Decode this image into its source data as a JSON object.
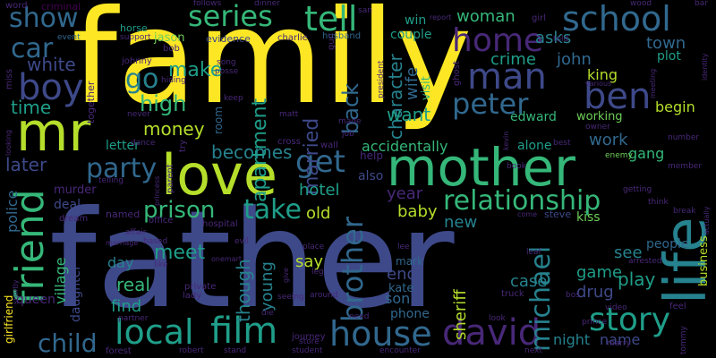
{
  "palette": {
    "yellow": "#fde725",
    "lime": "#b5de2b",
    "green": "#6ece58",
    "mint": "#35b779",
    "teal": "#1f9e89",
    "tealblue": "#26828e",
    "blue": "#31688e",
    "indigo": "#3e4989",
    "purple": "#482878",
    "violet": "#440154"
  },
  "words": [
    {
      "text": "father",
      "color": "indigo"
    },
    {
      "text": "family",
      "color": "yellow"
    },
    {
      "text": "mother",
      "color": "mint"
    },
    {
      "text": "mr",
      "color": "lime"
    },
    {
      "text": "love",
      "color": "lime"
    },
    {
      "text": "life",
      "color": "tealblue"
    },
    {
      "text": "school",
      "color": "blue"
    },
    {
      "text": "series",
      "color": "mint"
    },
    {
      "text": "tell",
      "color": "mint"
    },
    {
      "text": "home",
      "color": "purple"
    },
    {
      "text": "man",
      "color": "indigo"
    },
    {
      "text": "boy",
      "color": "indigo"
    },
    {
      "text": "friend",
      "color": "mint"
    },
    {
      "text": "show",
      "color": "blue"
    },
    {
      "text": "car",
      "color": "blue"
    },
    {
      "text": "local",
      "color": "teal"
    },
    {
      "text": "film",
      "color": "teal"
    },
    {
      "text": "house",
      "color": "blue"
    },
    {
      "text": "david",
      "color": "purple"
    },
    {
      "text": "story",
      "color": "teal"
    },
    {
      "text": "relationship",
      "color": "mint"
    },
    {
      "text": "party",
      "color": "blue"
    },
    {
      "text": "get",
      "color": "blue"
    },
    {
      "text": "peter",
      "color": "blue"
    },
    {
      "text": "ben",
      "color": "indigo"
    },
    {
      "text": "child",
      "color": "blue"
    },
    {
      "text": "michael",
      "color": "tealblue"
    },
    {
      "text": "brother",
      "color": "blue"
    },
    {
      "text": "take",
      "color": "teal"
    },
    {
      "text": "prison",
      "color": "mint"
    },
    {
      "text": "becomes",
      "color": "tealblue"
    },
    {
      "text": "go",
      "color": "tealblue"
    },
    {
      "text": "high",
      "color": "mint"
    },
    {
      "text": "money",
      "color": "lime"
    },
    {
      "text": "make",
      "color": "teal"
    },
    {
      "text": "white",
      "color": "indigo"
    },
    {
      "text": "time",
      "color": "teal"
    },
    {
      "text": "later",
      "color": "indigo"
    },
    {
      "text": "apartment",
      "color": "teal"
    },
    {
      "text": "married",
      "color": "indigo"
    },
    {
      "text": "back",
      "color": "blue"
    },
    {
      "text": "character",
      "color": "tealblue"
    },
    {
      "text": "wife",
      "color": "blue"
    },
    {
      "text": "want",
      "color": "teal"
    },
    {
      "text": "crime",
      "color": "teal"
    },
    {
      "text": "woman",
      "color": "mint"
    },
    {
      "text": "asks",
      "color": "tealblue"
    },
    {
      "text": "john",
      "color": "blue"
    },
    {
      "text": "king",
      "color": "lime"
    },
    {
      "text": "town",
      "color": "blue"
    },
    {
      "text": "plot",
      "color": "teal"
    },
    {
      "text": "begin",
      "color": "lime"
    },
    {
      "text": "working",
      "color": "green"
    },
    {
      "text": "work",
      "color": "blue"
    },
    {
      "text": "gang",
      "color": "mint"
    },
    {
      "text": "edward",
      "color": "mint"
    },
    {
      "text": "alone",
      "color": "teal"
    },
    {
      "text": "accidentally",
      "color": "mint"
    },
    {
      "text": "hotel",
      "color": "teal"
    },
    {
      "text": "year",
      "color": "purple"
    },
    {
      "text": "baby",
      "color": "lime"
    },
    {
      "text": "new",
      "color": "tealblue"
    },
    {
      "text": "old",
      "color": "lime"
    },
    {
      "text": "meet",
      "color": "teal"
    },
    {
      "text": "day",
      "color": "tealblue"
    },
    {
      "text": "real",
      "color": "mint"
    },
    {
      "text": "find",
      "color": "teal"
    },
    {
      "text": "say",
      "color": "lime"
    },
    {
      "text": "young",
      "color": "tealblue"
    },
    {
      "text": "though",
      "color": "tealblue"
    },
    {
      "text": "end",
      "color": "indigo"
    },
    {
      "text": "son",
      "color": "blue"
    },
    {
      "text": "case",
      "color": "tealblue"
    },
    {
      "text": "sheriff",
      "color": "lime"
    },
    {
      "text": "drug",
      "color": "indigo"
    },
    {
      "text": "game",
      "color": "teal"
    },
    {
      "text": "play",
      "color": "teal"
    },
    {
      "text": "see",
      "color": "tealblue"
    },
    {
      "text": "people",
      "color": "blue"
    },
    {
      "text": "business",
      "color": "lime"
    },
    {
      "text": "night",
      "color": "tealblue"
    },
    {
      "text": "name",
      "color": "indigo"
    },
    {
      "text": "police",
      "color": "blue"
    },
    {
      "text": "village",
      "color": "mint"
    },
    {
      "text": "daughter",
      "color": "indigo"
    },
    {
      "text": "girlfriend",
      "color": "yellow"
    },
    {
      "text": "queen",
      "color": "purple"
    },
    {
      "text": "murder",
      "color": "purple"
    },
    {
      "text": "deal",
      "color": "indigo"
    },
    {
      "text": "letter",
      "color": "teal"
    },
    {
      "text": "phone",
      "color": "blue"
    },
    {
      "text": "kate",
      "color": "blue"
    },
    {
      "text": "mark",
      "color": "blue"
    },
    {
      "text": "kiss",
      "color": "green"
    },
    {
      "text": "steve",
      "color": "indigo"
    },
    {
      "text": "together",
      "color": "purple"
    },
    {
      "text": "evidence",
      "color": "indigo"
    },
    {
      "text": "jason",
      "color": "green"
    },
    {
      "text": "criminal",
      "color": "violet"
    },
    {
      "text": "word",
      "color": "purple"
    },
    {
      "text": "win",
      "color": "teal"
    },
    {
      "text": "couple",
      "color": "teal"
    },
    {
      "text": "horse",
      "color": "teal"
    },
    {
      "text": "visit",
      "color": "mint"
    },
    {
      "text": "husband",
      "color": "blue"
    },
    {
      "text": "charlie",
      "color": "purple"
    },
    {
      "text": "event",
      "color": "blue"
    },
    {
      "text": "support",
      "color": "purple"
    },
    {
      "text": "bob",
      "color": "purple"
    },
    {
      "text": "johnny",
      "color": "purple"
    },
    {
      "text": "miss",
      "color": "purple"
    },
    {
      "text": "gun",
      "color": "purple"
    },
    {
      "text": "room",
      "color": "blue"
    },
    {
      "text": "ghost",
      "color": "purple"
    },
    {
      "text": "president",
      "color": "purple"
    },
    {
      "text": "also",
      "color": "indigo"
    },
    {
      "text": "help",
      "color": "purple"
    },
    {
      "text": "wall",
      "color": "purple"
    },
    {
      "text": "cross",
      "color": "purple"
    },
    {
      "text": "hospital",
      "color": "purple"
    },
    {
      "text": "office",
      "color": "purple"
    },
    {
      "text": "dream",
      "color": "purple"
    },
    {
      "text": "named",
      "color": "purple"
    },
    {
      "text": "parent",
      "color": "purple"
    },
    {
      "text": "lady",
      "color": "purple"
    },
    {
      "text": "private",
      "color": "purple"
    },
    {
      "text": "journey",
      "color": "purple"
    },
    {
      "text": "forest",
      "color": "purple"
    },
    {
      "text": "robert",
      "color": "purple"
    },
    {
      "text": "stand",
      "color": "purple"
    },
    {
      "text": "student",
      "color": "purple"
    },
    {
      "text": "encounter",
      "color": "purple"
    },
    {
      "text": "next",
      "color": "purple"
    },
    {
      "text": "marry",
      "color": "purple"
    },
    {
      "text": "tommy",
      "color": "purple"
    },
    {
      "text": "feel",
      "color": "purple"
    },
    {
      "text": "prince",
      "color": "purple"
    },
    {
      "text": "video",
      "color": "purple"
    },
    {
      "text": "look",
      "color": "purple"
    },
    {
      "text": "need",
      "color": "purple"
    },
    {
      "text": "store",
      "color": "purple"
    },
    {
      "text": "partner",
      "color": "purple"
    },
    {
      "text": "based",
      "color": "purple"
    },
    {
      "text": "marriage",
      "color": "purple"
    },
    {
      "text": "affair",
      "color": "purple"
    },
    {
      "text": "like",
      "color": "purple"
    },
    {
      "text": "die",
      "color": "purple"
    },
    {
      "text": "seeing",
      "color": "purple"
    },
    {
      "text": "around",
      "color": "purple"
    },
    {
      "text": "place",
      "color": "purple"
    },
    {
      "text": "leg",
      "color": "purple"
    },
    {
      "text": "leaf",
      "color": "purple"
    },
    {
      "text": "truck",
      "color": "purple"
    },
    {
      "text": "bos",
      "color": "purple"
    },
    {
      "text": "lee",
      "color": "purple"
    },
    {
      "text": "arrested",
      "color": "purple"
    },
    {
      "text": "break",
      "color": "purple"
    },
    {
      "text": "think",
      "color": "purple"
    },
    {
      "text": "getting",
      "color": "purple"
    },
    {
      "text": "member",
      "color": "purple"
    },
    {
      "text": "number",
      "color": "purple"
    },
    {
      "text": "enemy",
      "color": "green"
    },
    {
      "text": "owner",
      "color": "purple"
    },
    {
      "text": "best",
      "color": "purple"
    },
    {
      "text": "book",
      "color": "purple"
    },
    {
      "text": "kevin",
      "color": "purple"
    },
    {
      "text": "made",
      "color": "purple"
    },
    {
      "text": "job",
      "color": "purple"
    },
    {
      "text": "try",
      "color": "purple"
    },
    {
      "text": "dance",
      "color": "purple"
    },
    {
      "text": "never",
      "color": "purple"
    },
    {
      "text": "matt",
      "color": "purple"
    },
    {
      "text": "keep",
      "color": "purple"
    },
    {
      "text": "hiding",
      "color": "purple"
    },
    {
      "text": "song",
      "color": "purple"
    },
    {
      "text": "posse",
      "color": "purple"
    },
    {
      "text": "follows",
      "color": "purple"
    },
    {
      "text": "dinner",
      "color": "purple"
    },
    {
      "text": "san",
      "color": "purple"
    },
    {
      "text": "report",
      "color": "purple"
    },
    {
      "text": "girl",
      "color": "purple"
    },
    {
      "text": "wood",
      "color": "purple"
    },
    {
      "text": "bar",
      "color": "purple"
    },
    {
      "text": "told",
      "color": "purple"
    },
    {
      "text": "various",
      "color": "purple"
    },
    {
      "text": "meeting",
      "color": "purple"
    },
    {
      "text": "identity",
      "color": "purple"
    },
    {
      "text": "princess",
      "color": "purple"
    },
    {
      "text": "come",
      "color": "purple"
    },
    {
      "text": "shortly",
      "color": "purple"
    },
    {
      "text": "actually",
      "color": "purple"
    },
    {
      "text": "onemart",
      "color": "purple"
    },
    {
      "text": "looking",
      "color": "purple"
    },
    {
      "text": "telling",
      "color": "purple"
    },
    {
      "text": "give",
      "color": "purple"
    },
    {
      "text": "evil",
      "color": "purple"
    }
  ]
}
